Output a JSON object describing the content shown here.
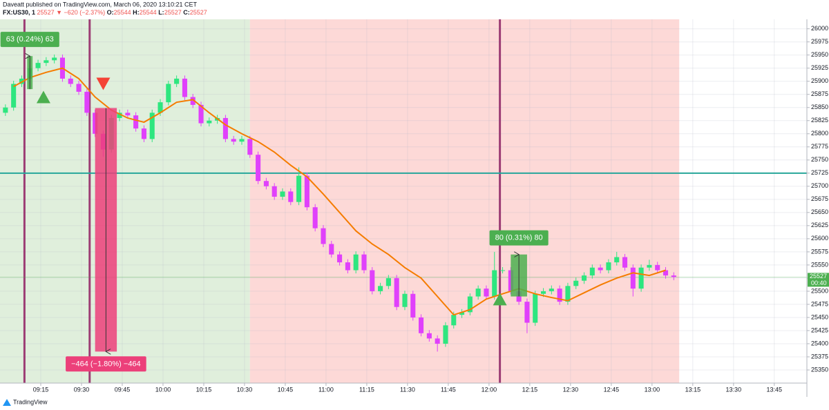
{
  "header": {
    "line1": "Daveatt published on TradingView.com, March 06, 2020 13:10:21 CET",
    "symbol": "FX:US30, 1",
    "last": 25527,
    "arrow": "▼",
    "change": "−620 (−2.37%)",
    "ohlc": [
      {
        "label": "O:",
        "value": 25544
      },
      {
        "label": "H:",
        "value": 25544
      },
      {
        "label": "L:",
        "value": 25527
      },
      {
        "label": "C:",
        "value": 25527
      }
    ]
  },
  "chart_data": {
    "type": "candlestick",
    "x": [
      "09:02",
      "09:05",
      "09:08",
      "09:11",
      "09:14",
      "09:17",
      "09:20",
      "09:23",
      "09:26",
      "09:29",
      "09:32",
      "09:35",
      "09:38",
      "09:41",
      "09:44",
      "09:47",
      "09:50",
      "09:53",
      "09:56",
      "09:59",
      "10:02",
      "10:05",
      "10:08",
      "10:11",
      "10:14",
      "10:17",
      "10:20",
      "10:23",
      "10:26",
      "10:29",
      "10:32",
      "10:35",
      "10:38",
      "10:41",
      "10:44",
      "10:47",
      "10:50",
      "10:53",
      "10:56",
      "10:59",
      "11:02",
      "11:05",
      "11:08",
      "11:11",
      "11:14",
      "11:17",
      "11:20",
      "11:23",
      "11:26",
      "11:29",
      "11:32",
      "11:35",
      "11:38",
      "11:41",
      "11:44",
      "11:47",
      "11:50",
      "11:53",
      "11:56",
      "11:59",
      "12:02",
      "12:05",
      "12:08",
      "12:11",
      "12:14",
      "12:17",
      "12:20",
      "12:23",
      "12:26",
      "12:29",
      "12:32",
      "12:35",
      "12:38",
      "12:41",
      "12:44",
      "12:47",
      "12:50",
      "12:53",
      "12:56",
      "12:59",
      "13:02",
      "13:05",
      "13:08"
    ],
    "open": [
      25840,
      25850,
      25895,
      25905,
      25925,
      25935,
      25940,
      25945,
      25905,
      25895,
      25880,
      25840,
      25800,
      25770,
      25830,
      25840,
      25835,
      25810,
      25790,
      25840,
      25860,
      25895,
      25905,
      25870,
      25855,
      25820,
      25825,
      25830,
      25790,
      25785,
      25790,
      25760,
      25710,
      25700,
      25680,
      25690,
      25670,
      25720,
      25660,
      25620,
      25590,
      25570,
      25555,
      25540,
      25570,
      25540,
      25500,
      25510,
      25525,
      25470,
      25495,
      25450,
      25420,
      25410,
      25400,
      25435,
      25455,
      25460,
      25490,
      25505,
      25490,
      25540,
      25540,
      25500,
      25480,
      25440,
      25495,
      25500,
      25505,
      25480,
      25510,
      25520,
      25530,
      25545,
      25540,
      25555,
      25565,
      25545,
      25505,
      25545,
      25550,
      25540,
      25530
    ],
    "high": [
      25856,
      25901,
      25911,
      25931,
      25941,
      25946,
      25951,
      25951,
      25911,
      25901,
      25886,
      25846,
      25806,
      25836,
      25846,
      25846,
      25841,
      25816,
      25846,
      25866,
      25901,
      25911,
      25911,
      25876,
      25861,
      25831,
      25836,
      25836,
      25796,
      25796,
      25796,
      25766,
      25716,
      25706,
      25696,
      25696,
      25736,
      25726,
      25666,
      25626,
      25596,
      25576,
      25561,
      25576,
      25576,
      25546,
      25516,
      25531,
      25531,
      25501,
      25501,
      25456,
      25426,
      25416,
      25441,
      25461,
      25466,
      25496,
      25511,
      25511,
      25575,
      25546,
      25546,
      25506,
      25486,
      25501,
      25506,
      25511,
      25511,
      25516,
      25526,
      25536,
      25551,
      25551,
      25561,
      25575,
      25571,
      25551,
      25551,
      25560,
      25556,
      25546,
      25536
    ],
    "low": [
      25834,
      25844,
      25889,
      25899,
      25919,
      25929,
      25934,
      25899,
      25889,
      25874,
      25834,
      25794,
      25756,
      25764,
      25824,
      25829,
      25804,
      25784,
      25784,
      25834,
      25854,
      25889,
      25864,
      25849,
      25814,
      25814,
      25819,
      25784,
      25779,
      25779,
      25754,
      25704,
      25694,
      25674,
      25674,
      25664,
      25664,
      25654,
      25614,
      25584,
      25564,
      25549,
      25534,
      25534,
      25534,
      25494,
      25494,
      25504,
      25464,
      25464,
      25444,
      25414,
      25404,
      25385,
      25394,
      25429,
      25449,
      25454,
      25484,
      25484,
      25484,
      25534,
      25494,
      25474,
      25420,
      25434,
      25489,
      25494,
      25474,
      25474,
      25504,
      25514,
      25524,
      25534,
      25534,
      25549,
      25539,
      25490,
      25499,
      25539,
      25534,
      25524,
      25521
    ],
    "close": [
      25850,
      25895,
      25905,
      25925,
      25935,
      25940,
      25945,
      25905,
      25895,
      25880,
      25840,
      25800,
      25770,
      25830,
      25840,
      25835,
      25810,
      25790,
      25840,
      25860,
      25895,
      25905,
      25870,
      25855,
      25820,
      25825,
      25830,
      25790,
      25785,
      25790,
      25760,
      25710,
      25700,
      25680,
      25690,
      25670,
      25720,
      25660,
      25620,
      25590,
      25570,
      25555,
      25540,
      25570,
      25540,
      25500,
      25510,
      25525,
      25470,
      25495,
      25450,
      25420,
      25410,
      25400,
      25435,
      25455,
      25460,
      25490,
      25505,
      25490,
      25540,
      25540,
      25500,
      25480,
      25440,
      25495,
      25500,
      25505,
      25480,
      25510,
      25520,
      25530,
      25545,
      25540,
      25555,
      25565,
      25545,
      25505,
      25545,
      25550,
      25540,
      25530,
      25527
    ],
    "up_color": "#2ee67f",
    "down_color": "#e040fb",
    "ma": {
      "color": "#f57c00",
      "x": [
        "09:05",
        "09:11",
        "09:17",
        "09:23",
        "09:29",
        "09:35",
        "09:41",
        "09:47",
        "09:53",
        "09:59",
        "10:05",
        "10:11",
        "10:17",
        "10:23",
        "10:29",
        "10:35",
        "10:41",
        "10:47",
        "10:53",
        "10:59",
        "11:05",
        "11:11",
        "11:17",
        "11:23",
        "11:29",
        "11:35",
        "11:41",
        "11:47",
        "11:53",
        "11:59",
        "12:05",
        "12:11",
        "12:17",
        "12:23",
        "12:29",
        "12:35",
        "12:41",
        "12:47",
        "12:53",
        "12:59",
        "13:05"
      ],
      "values": [
        25890,
        25907,
        25917,
        25925,
        25905,
        25870,
        25845,
        25830,
        25822,
        25840,
        25860,
        25865,
        25840,
        25817,
        25800,
        25785,
        25765,
        25740,
        25718,
        25685,
        25650,
        25615,
        25590,
        25570,
        25545,
        25525,
        25490,
        25455,
        25465,
        25485,
        25495,
        25505,
        25495,
        25488,
        25482,
        25497,
        25512,
        25525,
        25535,
        25530,
        25540
      ]
    },
    "xlim": [
      "09:00",
      "13:57"
    ],
    "xticks": [
      "09:15",
      "09:30",
      "09:45",
      "10:00",
      "10:15",
      "10:30",
      "10:45",
      "11:00",
      "11:15",
      "11:30",
      "11:45",
      "12:00",
      "12:15",
      "12:30",
      "12:45",
      "13:00",
      "13:15",
      "13:30",
      "13:45"
    ],
    "ylim": [
      25325,
      26018
    ],
    "yticks": [
      25350,
      25375,
      25400,
      25425,
      25450,
      25475,
      25500,
      25525,
      25550,
      25575,
      25600,
      25625,
      25650,
      25675,
      25700,
      25725,
      25750,
      25775,
      25800,
      25825,
      25850,
      25875,
      25900,
      25925,
      25950,
      25975,
      26000
    ],
    "grid": true,
    "zones": [
      {
        "from": "09:00",
        "to": "10:32",
        "color": "#e0efdc"
      },
      {
        "from": "10:32",
        "to": "13:10",
        "color": "#fdd9d7"
      }
    ],
    "vlines": {
      "color": "#9c3c74",
      "x": [
        "09:09",
        "09:33",
        "12:04"
      ]
    },
    "hline": {
      "value": 25725,
      "color": "#26a69a"
    },
    "last_price": {
      "value": 25527,
      "countdown": "00:40",
      "color": "#4caf50"
    },
    "signals": [
      {
        "x": "09:16",
        "value": 25870,
        "direction": "up",
        "color": "#4caf50"
      },
      {
        "x": "09:38",
        "value": 25895,
        "direction": "down",
        "color": "#f44336"
      },
      {
        "x": "12:04",
        "value": 25485,
        "direction": "up",
        "color": "#4caf50"
      }
    ],
    "measures": [
      {
        "x": [
          "09:10",
          "09:12"
        ],
        "values": [
          25885,
          25948
        ],
        "label": "63 (0.24%) 63",
        "color": "#4caf50"
      },
      {
        "x": [
          "09:35",
          "09:43"
        ],
        "values": [
          25849,
          25385
        ],
        "label": "−464 (−1.80%) −464",
        "color": "#ec407a"
      },
      {
        "x": [
          "12:08",
          "12:14"
        ],
        "values": [
          25490,
          25570
        ],
        "label": "80 (0.31%) 80",
        "color": "#4caf50"
      }
    ]
  },
  "footer": {
    "brand": "TradingView"
  }
}
